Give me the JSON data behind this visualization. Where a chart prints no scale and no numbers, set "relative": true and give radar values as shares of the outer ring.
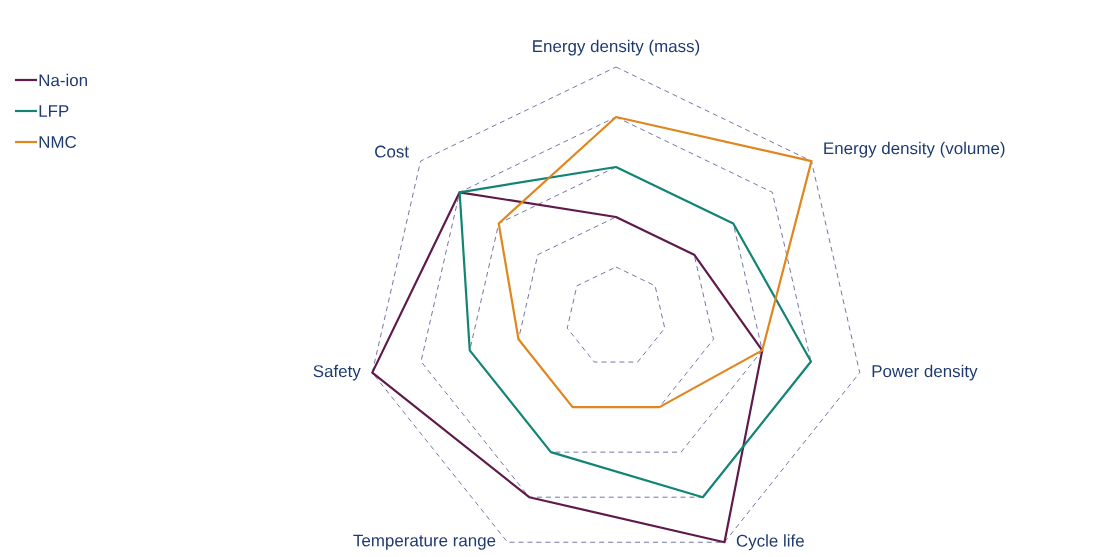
{
  "chart_data": {
    "type": "radar",
    "relative": true,
    "grid": true,
    "legend": "top left",
    "marker": "none",
    "line_style": "solid",
    "categories": [
      "Energy density (mass)",
      "Energy density (volume)",
      "Power density",
      "Cycle life",
      "Temperature range",
      "Safety",
      "Cost"
    ],
    "series": [
      {
        "name": "Na-ion",
        "color": "#5e1a4a",
        "values": [
          0.4,
          0.4,
          0.6,
          1.0,
          0.8,
          1.0,
          0.8
        ]
      },
      {
        "name": "LFP",
        "color": "#128474",
        "values": [
          0.6,
          0.6,
          0.8,
          0.8,
          0.6,
          0.6,
          0.8
        ]
      },
      {
        "name": "NMC",
        "color": "#e0861c",
        "values": [
          0.8,
          1.0,
          0.6,
          0.4,
          0.4,
          0.4,
          0.6
        ]
      }
    ]
  }
}
